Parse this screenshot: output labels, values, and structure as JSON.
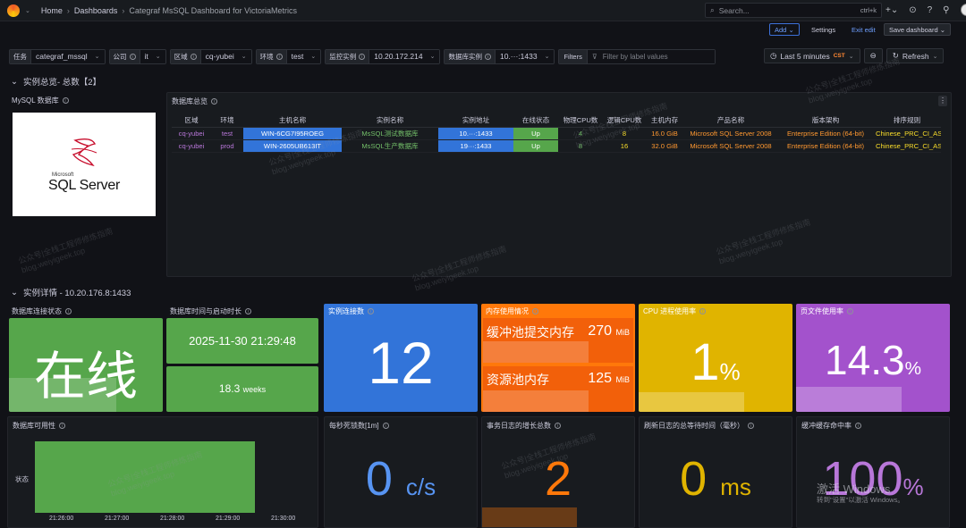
{
  "breadcrumb": {
    "home": "Home",
    "dashboards": "Dashboards",
    "current": "Categraf MsSQL Dashboard for VictoriaMetrics"
  },
  "search": {
    "placeholder": "Search...",
    "shortcut": "ctrl+k"
  },
  "actions": {
    "add": "Add",
    "settings": "Settings",
    "exit_edit": "Exit edit",
    "save": "Save dashboard"
  },
  "variables": [
    {
      "label": "任务",
      "value": "categraf_mssql"
    },
    {
      "label": "公司",
      "value": "it"
    },
    {
      "label": "区域",
      "value": "cq-yubei"
    },
    {
      "label": "环境",
      "value": "test"
    },
    {
      "label": "监控实例",
      "value": "10.20.172.214"
    },
    {
      "label": "数据库实例",
      "value": "10.···:1433"
    }
  ],
  "filters": {
    "label": "Filters",
    "placeholder": "Filter by label values"
  },
  "time": {
    "range": "Last 5 minutes",
    "tz": "CST",
    "refresh": "Refresh"
  },
  "row1": {
    "title": "实例总览- 总数【2】"
  },
  "row2": {
    "title": "实例详情 - 10.20.176.8:1433"
  },
  "panels": {
    "logo_title": "MySQL 数据库",
    "logo_vendor": "Microsoft",
    "logo_product": "SQL Server",
    "table_title": "数据库总览"
  },
  "table": {
    "headers": [
      "区域",
      "环境",
      "主机名称",
      "实例名称",
      "实例地址",
      "在线状态",
      "物理CPU数",
      "逻辑CPU数",
      "主机内存",
      "产品名称",
      "版本架构",
      "排序规则"
    ],
    "rows": [
      [
        "cq-yubei",
        "test",
        "WIN-6CG7I95ROEG",
        "MsSQL测试数据库",
        "10.···:1433",
        "Up",
        "4",
        "8",
        "16.0 GiB",
        "Microsoft SQL Server 2008",
        "Enterprise Edition (64-bit)",
        "Chinese_PRC_CI_AS"
      ],
      [
        "cq-yubei",
        "prod",
        "WIN-2605UB613IT",
        "MsSQL生产数据库",
        "19···:1433",
        "Up",
        "8",
        "16",
        "32.0 GiB",
        "Microsoft SQL Server 2008",
        "Enterprise Edition (64-bit)",
        "Chinese_PRC_CI_AS"
      ]
    ]
  },
  "stats": {
    "conn_title": "数据库连接状态",
    "conn_value": "在线",
    "time_title": "数据库时间与启动时长",
    "time_value": "2025-11-30 21:29:48",
    "uptime_value": "18.3",
    "uptime_unit": "weeks",
    "inst_title": "实例连接数",
    "inst_value": "12",
    "mem_title": "内存使用情况",
    "mem_buf_label": "缓冲池提交内存",
    "mem_buf_value": "270",
    "mem_buf_unit": "MiB",
    "mem_pool_label": "资源池内存",
    "mem_pool_value": "125",
    "mem_pool_unit": "MiB",
    "cpu_title": "CPU 进程使用率",
    "cpu_value": "1",
    "cpu_unit": "%",
    "page_title": "页文件使用率",
    "page_value": "14.3",
    "page_unit": "%",
    "avail_title": "数据库可用性",
    "avail_series": "状态",
    "avail_ticks": [
      "21:26:00",
      "21:27:00",
      "21:28:00",
      "21:29:00",
      "21:30:00"
    ],
    "deadlock_title": "每秒死锁数[1m]",
    "deadlock_value": "0",
    "deadlock_unit": "c/s",
    "log_title": "事务日志的增长总数",
    "log_value": "2",
    "wait_title": "刷新日志的总等待时间（毫秒）",
    "wait_value": "0",
    "wait_unit": "ms",
    "cache_title": "缓冲缓存命中率",
    "cache_value": "100",
    "cache_unit": "%"
  },
  "watermark": {
    "line1": "公众号|全栈工程师修炼指南",
    "line2": "blog.weiyigeek.top"
  },
  "os_overlay": {
    "line1": "激活 Windows",
    "line2": "转到\"设置\"以激活 Windows。"
  },
  "colors": {
    "green": "#56a64b",
    "blue": "#3274d9",
    "orange": "#ff780a",
    "yellow": "#e0b400",
    "purple": "#a352cc"
  }
}
